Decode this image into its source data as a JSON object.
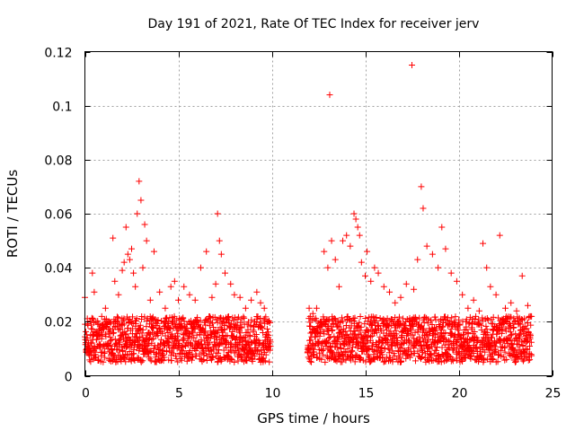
{
  "chart_data": {
    "type": "scatter",
    "title": "Day 191 of 2021, Rate Of TEC Index for receiver jerv",
    "xlabel": "GPS time / hours",
    "ylabel": "ROTI / TECUs",
    "xlim": [
      0,
      25
    ],
    "ylim": [
      0,
      0.12
    ],
    "xticks": [
      0,
      5,
      10,
      15,
      20,
      25
    ],
    "xtick_labels": [
      "0",
      "5",
      "10",
      "15",
      "20",
      "25"
    ],
    "yticks": [
      0,
      0.02,
      0.04,
      0.06,
      0.08,
      0.1,
      0.12
    ],
    "ytick_labels": [
      "0",
      "0.02",
      "0.04",
      "0.06",
      "0.08",
      "0.1",
      "0.12"
    ],
    "grid": true,
    "marker": "+",
    "marker_color": "#ff0000",
    "series": [
      {
        "name": "ROTI",
        "x": [
          0.0,
          0.1,
          0.3,
          0.4,
          0.5,
          0.7,
          0.9,
          1.1,
          1.3,
          1.5,
          1.6,
          1.8,
          2.0,
          2.1,
          2.2,
          2.3,
          2.4,
          2.5,
          2.6,
          2.7,
          2.8,
          2.9,
          3.0,
          3.1,
          3.2,
          3.3,
          3.5,
          3.7,
          4.0,
          4.3,
          4.6,
          4.8,
          5.0,
          5.3,
          5.6,
          5.9,
          6.2,
          6.5,
          6.8,
          7.0,
          7.1,
          7.2,
          7.3,
          7.5,
          7.8,
          8.0,
          8.3,
          8.6,
          8.9,
          9.2,
          9.4,
          9.6,
          9.8,
          12.0,
          12.2,
          12.4,
          12.6,
          12.8,
          13.0,
          13.1,
          13.2,
          13.4,
          13.6,
          13.8,
          14.0,
          14.2,
          14.4,
          14.5,
          14.6,
          14.7,
          14.8,
          15.0,
          15.1,
          15.3,
          15.5,
          15.7,
          16.0,
          16.3,
          16.6,
          16.9,
          17.2,
          17.5,
          17.6,
          17.8,
          18.0,
          18.1,
          18.3,
          18.6,
          18.9,
          19.1,
          19.3,
          19.6,
          19.9,
          20.2,
          20.5,
          20.8,
          21.1,
          21.3,
          21.5,
          21.7,
          22.0,
          22.2,
          22.5,
          22.8,
          23.1,
          23.4,
          23.7,
          23.9
        ],
        "y": [
          0.029,
          0.01,
          0.015,
          0.038,
          0.031,
          0.019,
          0.022,
          0.025,
          0.02,
          0.051,
          0.035,
          0.03,
          0.039,
          0.042,
          0.055,
          0.045,
          0.043,
          0.047,
          0.038,
          0.033,
          0.06,
          0.072,
          0.065,
          0.04,
          0.056,
          0.05,
          0.028,
          0.046,
          0.031,
          0.025,
          0.033,
          0.035,
          0.028,
          0.033,
          0.03,
          0.028,
          0.04,
          0.046,
          0.029,
          0.034,
          0.06,
          0.05,
          0.045,
          0.038,
          0.034,
          0.03,
          0.029,
          0.025,
          0.028,
          0.031,
          0.027,
          0.025,
          0.02,
          0.025,
          0.023,
          0.025,
          0.02,
          0.046,
          0.04,
          0.104,
          0.05,
          0.043,
          0.033,
          0.05,
          0.052,
          0.048,
          0.06,
          0.058,
          0.055,
          0.052,
          0.042,
          0.037,
          0.046,
          0.035,
          0.04,
          0.038,
          0.033,
          0.031,
          0.027,
          0.029,
          0.034,
          0.115,
          0.032,
          0.043,
          0.07,
          0.062,
          0.048,
          0.045,
          0.04,
          0.055,
          0.047,
          0.038,
          0.035,
          0.03,
          0.025,
          0.028,
          0.024,
          0.049,
          0.04,
          0.033,
          0.03,
          0.052,
          0.025,
          0.027,
          0.024,
          0.037,
          0.026,
          0.022
        ]
      }
    ],
    "dense_band": {
      "segments": [
        [
          0.0,
          9.9
        ],
        [
          11.9,
          23.9
        ]
      ],
      "y_range": [
        0.005,
        0.022
      ]
    }
  }
}
